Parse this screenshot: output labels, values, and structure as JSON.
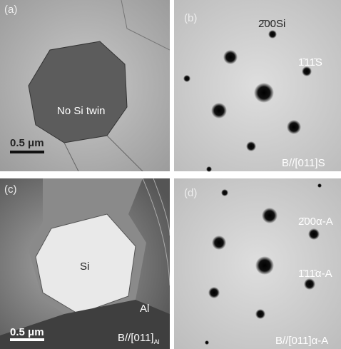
{
  "panels": [
    {
      "label": "(a)",
      "annotation": "No Si twin",
      "scale_bar": "0.5 μm"
    },
    {
      "label": "(b)",
      "spot_labels": [
        "2̄00Si",
        "1̄11̄S"
      ],
      "zone_axis": "B//[011]S"
    },
    {
      "label": "(c)",
      "annotations": [
        "Si",
        "Al"
      ],
      "scale_bar": "0.5 μm",
      "zone_axis": "B//[011]",
      "zone_axis_subscript": "Al"
    },
    {
      "label": "(d)",
      "spot_labels": [
        "2̄00α-A",
        "1̄11̄α-A"
      ],
      "zone_axis": "B//[011]α-A"
    }
  ]
}
